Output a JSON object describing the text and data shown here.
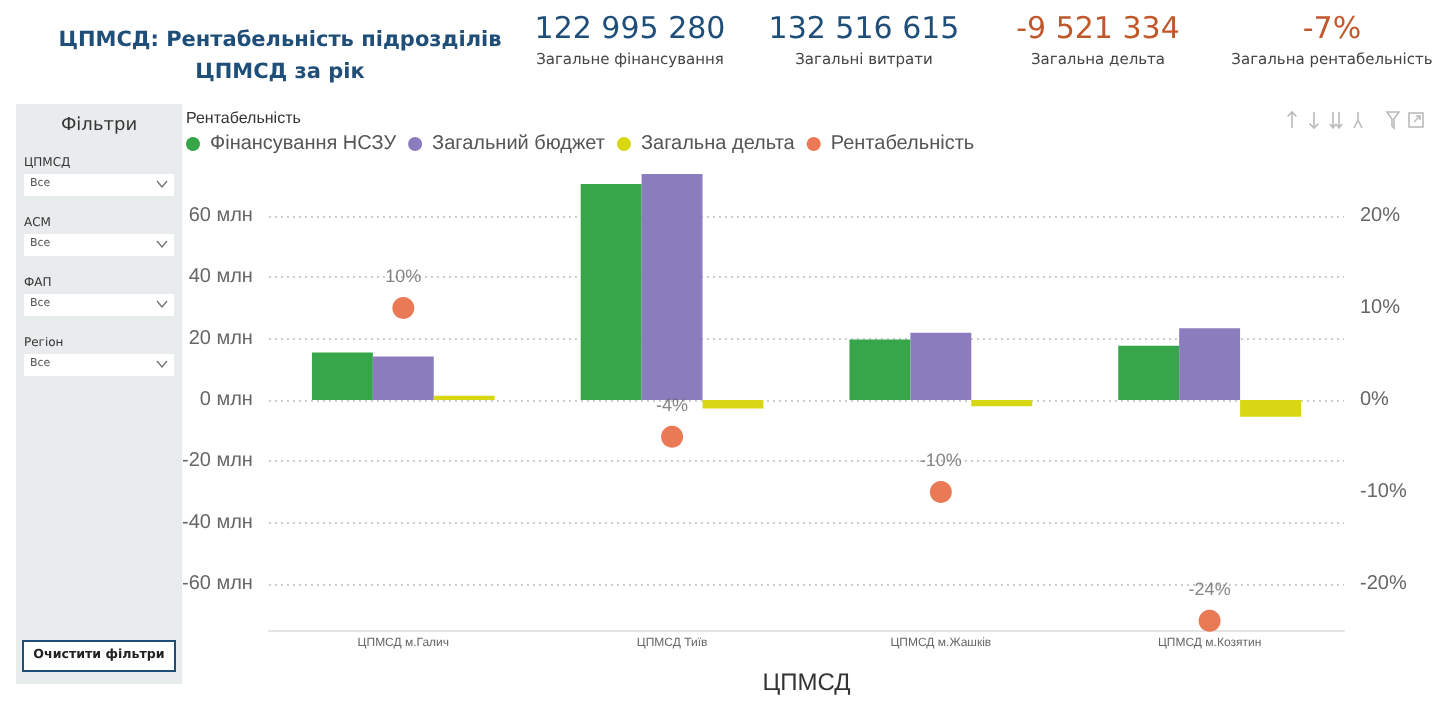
{
  "chart_data": [
    {
      "type": "other",
      "title": "ЦПМСД: Рентабельність підрозділів ЦПМСД за рік",
      "annotations": [
        "122 995 280",
        "Загальне фінансування",
        "132 516 615",
        "Загальні витрати",
        "-9 521 334",
        "Загальна дельта",
        "-7%",
        "Загальна рентабельність"
      ],
      "colors": [
        "#1f4e79",
        "#1f4e79",
        "#c0582b",
        "#c0582b"
      ]
    },
    {
      "type": "other",
      "title": "Фільтри",
      "annotations": [
        "ЦПМСД",
        "Все",
        "АСМ",
        "Все",
        "ФАП",
        "Все",
        "Регіон",
        "Все",
        "Очистити фільтри"
      ]
    },
    {
      "type": "bar",
      "title": "Рентабельність",
      "xlabel": "ЦПМСД",
      "categories": [
        "ЦПМСД м.Галич",
        "ЦПМСД Тиїв",
        "ЦПМСД м.Жашків",
        "ЦПМСД м.Козятин"
      ],
      "series": [
        {
          "name": "Фінансування НСЗУ",
          "color": "#37a64a",
          "values": [
            15.5,
            70.4,
            19.7,
            17.7
          ]
        },
        {
          "name": "Загальний бюджет",
          "color": "#8b7dbd",
          "values": [
            14.2,
            73.7,
            21.9,
            23.4
          ]
        },
        {
          "name": "Загальна дельта",
          "color": "#d8d714",
          "values": [
            1.4,
            -2.8,
            -2,
            -5.5
          ]
        },
        {
          "name": "Рентабельність",
          "type": "scatter",
          "axis": "y2",
          "color": "#e5572b",
          "values": [
            10,
            -4,
            -10,
            -24
          ],
          "value_labels": [
            "10%",
            "-4%",
            "-10%",
            "-24%"
          ]
        }
      ],
      "ylim": [
        -75,
        75
      ],
      "yticks": [
        {
          "value": -60,
          "label": "-60 млн"
        },
        {
          "value": -40,
          "label": "-40 млн"
        },
        {
          "value": -20,
          "label": "-20 млн"
        },
        {
          "value": 0,
          "label": "0 млн"
        },
        {
          "value": 20,
          "label": "20 млн"
        },
        {
          "value": 40,
          "label": "40 млн"
        },
        {
          "value": 60,
          "label": "60 млн"
        }
      ],
      "y2lim": [
        -25,
        25
      ],
      "y2ticks": [
        {
          "value": -20,
          "label": "-20%"
        },
        {
          "value": -10,
          "label": "-10%"
        },
        {
          "value": 0,
          "label": "0%"
        },
        {
          "value": 10,
          "label": "10%"
        },
        {
          "value": 20,
          "label": "20%"
        }
      ],
      "grid": "y",
      "legend": "top left",
      "marker": "circle"
    }
  ]
}
